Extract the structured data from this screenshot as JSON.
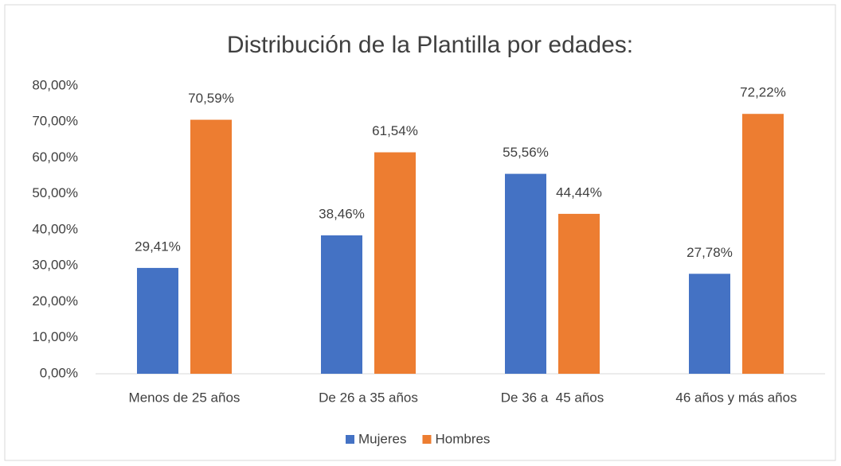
{
  "chart_data": {
    "type": "bar",
    "title": "Distribución de la Plantilla por edades:",
    "categories": [
      "Menos de 25 años",
      "De 26 a 35 años",
      "De 36 a  45 años",
      "46 años y más años"
    ],
    "series": [
      {
        "name": "Mujeres",
        "color": "#4472c4",
        "values": [
          29.41,
          38.46,
          55.56,
          27.78
        ],
        "value_labels": [
          "29,41%",
          "38,46%",
          "55,56%",
          "27,78%"
        ]
      },
      {
        "name": "Hombres",
        "color": "#ed7d31",
        "values": [
          70.59,
          61.54,
          44.44,
          72.22
        ],
        "value_labels": [
          "70,59%",
          "61,54%",
          "44,44%",
          "72,22%"
        ]
      }
    ],
    "ylim": [
      0,
      80
    ],
    "yticks": [
      {
        "value": 0,
        "label": "0,00%"
      },
      {
        "value": 10,
        "label": "10,00%"
      },
      {
        "value": 20,
        "label": "20,00%"
      },
      {
        "value": 30,
        "label": "30,00%"
      },
      {
        "value": 40,
        "label": "40,00%"
      },
      {
        "value": 50,
        "label": "50,00%"
      },
      {
        "value": 60,
        "label": "60,00%"
      },
      {
        "value": 70,
        "label": "70,00%"
      },
      {
        "value": 80,
        "label": "80,00%"
      }
    ],
    "grid": false,
    "legend": "bottom"
  }
}
